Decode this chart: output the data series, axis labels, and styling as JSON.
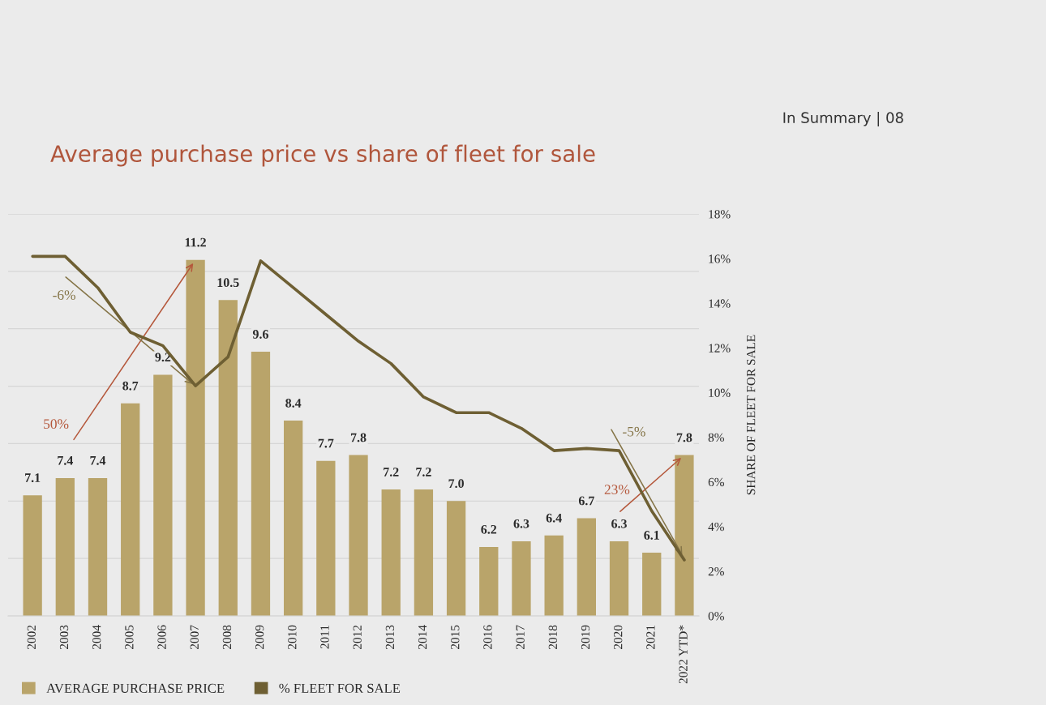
{
  "chart_data": {
    "type": "bar",
    "title": "Average purchase price vs share of fleet for sale",
    "y2label": "SHARE OF FLEET FOR SALE",
    "categories": [
      "2002",
      "2003",
      "2004",
      "2005",
      "2006",
      "2007",
      "2008",
      "2009",
      "2010",
      "2011",
      "2012",
      "2013",
      "2014",
      "2015",
      "2016",
      "2017",
      "2018",
      "2019",
      "2020",
      "2021",
      "2022 YTD*"
    ],
    "series": [
      {
        "name": "AVERAGE PURCHASE PRICE",
        "color": "#b9a46a",
        "values": [
          7.1,
          7.4,
          7.4,
          8.7,
          9.2,
          11.2,
          10.5,
          9.6,
          8.4,
          7.7,
          7.8,
          7.2,
          7.2,
          7.0,
          6.2,
          6.3,
          6.4,
          6.7,
          6.3,
          6.1,
          7.8
        ],
        "value_labels": [
          "7.1",
          "7.4",
          "7.4",
          "8.7",
          "9.2",
          "11.2",
          "10.5",
          "9.6",
          "8.4",
          "7.7",
          "7.8",
          "7.2",
          "7.2",
          "7.0",
          "6.2",
          "6.3",
          "6.4",
          "6.7",
          "6.3",
          "6.1",
          "7.8"
        ]
      },
      {
        "name": "% FLEET FOR SALE",
        "type": "line",
        "axis": "y2",
        "color": "#6e5f33",
        "values": [
          16.1,
          16.1,
          14.7,
          12.7,
          12.1,
          10.3,
          11.6,
          15.9,
          14.7,
          13.5,
          12.3,
          11.3,
          9.8,
          9.1,
          9.1,
          8.4,
          7.4,
          7.5,
          7.4,
          4.7,
          2.5
        ]
      }
    ],
    "ylim": [
      5,
      12
    ],
    "yticks": [
      {
        "value": 5,
        "label": null
      },
      {
        "value": 6,
        "label": null
      },
      {
        "value": 7,
        "label": null
      },
      {
        "value": 8,
        "label": null
      },
      {
        "value": 9,
        "label": null
      },
      {
        "value": 10,
        "label": null
      },
      {
        "value": 11,
        "label": null
      },
      {
        "value": 12,
        "label": null
      }
    ],
    "y2lim": [
      0,
      18
    ],
    "y2ticks": [
      {
        "value": 0,
        "label": "0%"
      },
      {
        "value": 2,
        "label": "2%"
      },
      {
        "value": 4,
        "label": "4%"
      },
      {
        "value": 6,
        "label": "6%"
      },
      {
        "value": 8,
        "label": "8%"
      },
      {
        "value": 10,
        "label": "10%"
      },
      {
        "value": 12,
        "label": "12%"
      },
      {
        "value": 14,
        "label": "14%"
      },
      {
        "value": 16,
        "label": "16%"
      },
      {
        "value": 18,
        "label": "18%"
      }
    ],
    "grid": "y",
    "legend": "bottom",
    "tick_labels": [
      "x",
      "y2"
    ],
    "annotations": [
      "In Summary | 08",
      {
        "text": "50%",
        "x": "2007",
        "y": 11.2
      },
      {
        "text": "-6%",
        "x": "2007",
        "y": 9.0
      },
      {
        "text": "23%",
        "x": "2022 YTD*",
        "y": 7.8
      },
      {
        "text": "-5%",
        "x": "2022 YTD*",
        "y": 6.0
      }
    ]
  }
}
